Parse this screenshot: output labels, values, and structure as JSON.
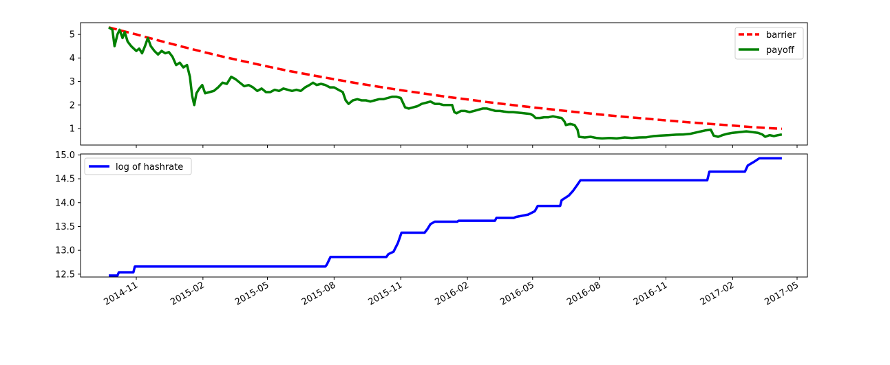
{
  "chart_data": [
    {
      "type": "line",
      "title": "",
      "xlabel": "",
      "ylabel": "",
      "x_tick_labels": [
        "2014-11",
        "2015-02",
        "2015-05",
        "2015-08",
        "2015-11",
        "2016-02",
        "2016-05",
        "2016-08",
        "2016-11",
        "2017-02",
        "2017-05"
      ],
      "x_ticks_shared": true,
      "ylim": [
        0.3,
        5.5
      ],
      "yticks": [
        1,
        2,
        3,
        4,
        5
      ],
      "legend_position": "top-right",
      "grid": false,
      "series": [
        {
          "name": "barrier",
          "color": "#ff0000",
          "style": "dashed",
          "points": [
            [
              "2014-09-24",
              5.3
            ],
            [
              "2014-11-01",
              5.0
            ],
            [
              "2014-12-01",
              4.75
            ],
            [
              "2015-01-01",
              4.5
            ],
            [
              "2015-02-01",
              4.26
            ],
            [
              "2015-03-01",
              4.05
            ],
            [
              "2015-04-01",
              3.84
            ],
            [
              "2015-05-01",
              3.64
            ],
            [
              "2015-06-01",
              3.44
            ],
            [
              "2015-07-01",
              3.27
            ],
            [
              "2015-08-01",
              3.1
            ],
            [
              "2015-09-01",
              2.93
            ],
            [
              "2015-10-01",
              2.78
            ],
            [
              "2015-11-01",
              2.63
            ],
            [
              "2015-12-01",
              2.5
            ],
            [
              "2016-01-01",
              2.36
            ],
            [
              "2016-02-01",
              2.24
            ],
            [
              "2016-03-01",
              2.12
            ],
            [
              "2016-04-01",
              2.01
            ],
            [
              "2016-05-01",
              1.9
            ],
            [
              "2016-06-01",
              1.8
            ],
            [
              "2016-07-01",
              1.7
            ],
            [
              "2016-08-01",
              1.6
            ],
            [
              "2016-09-01",
              1.51
            ],
            [
              "2016-10-01",
              1.43
            ],
            [
              "2016-11-01",
              1.35
            ],
            [
              "2016-12-01",
              1.27
            ],
            [
              "2017-01-01",
              1.2
            ],
            [
              "2017-02-01",
              1.13
            ],
            [
              "2017-03-01",
              1.06
            ],
            [
              "2017-04-10",
              0.99
            ]
          ]
        },
        {
          "name": "payoff",
          "color": "#008000",
          "style": "solid",
          "points": [
            [
              "2014-09-24",
              5.3
            ],
            [
              "2014-09-29",
              5.2
            ],
            [
              "2014-10-02",
              4.5
            ],
            [
              "2014-10-06",
              5.0
            ],
            [
              "2014-10-09",
              5.2
            ],
            [
              "2014-10-13",
              4.85
            ],
            [
              "2014-10-16",
              5.1
            ],
            [
              "2014-10-20",
              4.7
            ],
            [
              "2014-10-25",
              4.5
            ],
            [
              "2014-11-01",
              4.3
            ],
            [
              "2014-11-05",
              4.4
            ],
            [
              "2014-11-09",
              4.2
            ],
            [
              "2014-11-13",
              4.5
            ],
            [
              "2014-11-17",
              4.85
            ],
            [
              "2014-11-21",
              4.5
            ],
            [
              "2014-11-26",
              4.3
            ],
            [
              "2014-12-01",
              4.15
            ],
            [
              "2014-12-06",
              4.3
            ],
            [
              "2014-12-11",
              4.2
            ],
            [
              "2014-12-16",
              4.25
            ],
            [
              "2014-12-21",
              4.05
            ],
            [
              "2014-12-26",
              3.7
            ],
            [
              "2014-12-31",
              3.8
            ],
            [
              "2015-01-05",
              3.6
            ],
            [
              "2015-01-10",
              3.7
            ],
            [
              "2015-01-14",
              3.2
            ],
            [
              "2015-01-17",
              2.4
            ],
            [
              "2015-01-20",
              2.0
            ],
            [
              "2015-01-23",
              2.5
            ],
            [
              "2015-01-27",
              2.7
            ],
            [
              "2015-01-31",
              2.85
            ],
            [
              "2015-02-04",
              2.5
            ],
            [
              "2015-02-10",
              2.55
            ],
            [
              "2015-02-16",
              2.6
            ],
            [
              "2015-02-22",
              2.75
            ],
            [
              "2015-02-28",
              2.95
            ],
            [
              "2015-03-06",
              2.9
            ],
            [
              "2015-03-12",
              3.2
            ],
            [
              "2015-03-18",
              3.1
            ],
            [
              "2015-03-24",
              2.95
            ],
            [
              "2015-03-30",
              2.8
            ],
            [
              "2015-04-05",
              2.85
            ],
            [
              "2015-04-11",
              2.75
            ],
            [
              "2015-04-17",
              2.6
            ],
            [
              "2015-04-23",
              2.7
            ],
            [
              "2015-04-29",
              2.55
            ],
            [
              "2015-05-05",
              2.55
            ],
            [
              "2015-05-11",
              2.65
            ],
            [
              "2015-05-17",
              2.6
            ],
            [
              "2015-05-23",
              2.7
            ],
            [
              "2015-05-29",
              2.65
            ],
            [
              "2015-06-04",
              2.6
            ],
            [
              "2015-06-10",
              2.65
            ],
            [
              "2015-06-16",
              2.6
            ],
            [
              "2015-06-22",
              2.75
            ],
            [
              "2015-06-28",
              2.85
            ],
            [
              "2015-07-03",
              2.95
            ],
            [
              "2015-07-08",
              2.85
            ],
            [
              "2015-07-14",
              2.9
            ],
            [
              "2015-07-20",
              2.85
            ],
            [
              "2015-07-26",
              2.75
            ],
            [
              "2015-08-01",
              2.75
            ],
            [
              "2015-08-07",
              2.65
            ],
            [
              "2015-08-13",
              2.55
            ],
            [
              "2015-08-17",
              2.2
            ],
            [
              "2015-08-21",
              2.05
            ],
            [
              "2015-08-27",
              2.2
            ],
            [
              "2015-09-02",
              2.25
            ],
            [
              "2015-09-08",
              2.2
            ],
            [
              "2015-09-14",
              2.2
            ],
            [
              "2015-09-20",
              2.15
            ],
            [
              "2015-09-26",
              2.2
            ],
            [
              "2015-10-02",
              2.25
            ],
            [
              "2015-10-08",
              2.25
            ],
            [
              "2015-10-14",
              2.3
            ],
            [
              "2015-10-20",
              2.35
            ],
            [
              "2015-10-26",
              2.35
            ],
            [
              "2015-11-01",
              2.3
            ],
            [
              "2015-11-04",
              2.1
            ],
            [
              "2015-11-07",
              1.9
            ],
            [
              "2015-11-12",
              1.85
            ],
            [
              "2015-11-18",
              1.9
            ],
            [
              "2015-11-24",
              1.95
            ],
            [
              "2015-11-30",
              2.05
            ],
            [
              "2015-12-06",
              2.1
            ],
            [
              "2015-12-12",
              2.15
            ],
            [
              "2015-12-18",
              2.05
            ],
            [
              "2015-12-24",
              2.05
            ],
            [
              "2015-12-30",
              2.0
            ],
            [
              "2016-01-05",
              2.0
            ],
            [
              "2016-01-11",
              2.0
            ],
            [
              "2016-01-14",
              1.7
            ],
            [
              "2016-01-17",
              1.65
            ],
            [
              "2016-01-23",
              1.75
            ],
            [
              "2016-01-29",
              1.75
            ],
            [
              "2016-02-04",
              1.7
            ],
            [
              "2016-02-10",
              1.75
            ],
            [
              "2016-02-16",
              1.8
            ],
            [
              "2016-02-22",
              1.85
            ],
            [
              "2016-02-28",
              1.85
            ],
            [
              "2016-03-05",
              1.8
            ],
            [
              "2016-03-11",
              1.75
            ],
            [
              "2016-03-17",
              1.75
            ],
            [
              "2016-03-23",
              1.72
            ],
            [
              "2016-03-29",
              1.7
            ],
            [
              "2016-04-04",
              1.7
            ],
            [
              "2016-04-10",
              1.68
            ],
            [
              "2016-04-16",
              1.66
            ],
            [
              "2016-04-22",
              1.64
            ],
            [
              "2016-04-28",
              1.62
            ],
            [
              "2016-05-02",
              1.55
            ],
            [
              "2016-05-05",
              1.45
            ],
            [
              "2016-05-11",
              1.45
            ],
            [
              "2016-05-17",
              1.48
            ],
            [
              "2016-05-23",
              1.48
            ],
            [
              "2016-05-29",
              1.52
            ],
            [
              "2016-06-04",
              1.48
            ],
            [
              "2016-06-10",
              1.45
            ],
            [
              "2016-06-14",
              1.3
            ],
            [
              "2016-06-16",
              1.15
            ],
            [
              "2016-06-22",
              1.2
            ],
            [
              "2016-06-28",
              1.15
            ],
            [
              "2016-07-02",
              0.95
            ],
            [
              "2016-07-04",
              0.65
            ],
            [
              "2016-07-12",
              0.62
            ],
            [
              "2016-07-20",
              0.65
            ],
            [
              "2016-07-28",
              0.6
            ],
            [
              "2016-08-05",
              0.58
            ],
            [
              "2016-08-15",
              0.6
            ],
            [
              "2016-08-25",
              0.58
            ],
            [
              "2016-09-05",
              0.62
            ],
            [
              "2016-09-15",
              0.6
            ],
            [
              "2016-09-25",
              0.62
            ],
            [
              "2016-10-05",
              0.63
            ],
            [
              "2016-10-15",
              0.68
            ],
            [
              "2016-10-25",
              0.7
            ],
            [
              "2016-11-05",
              0.72
            ],
            [
              "2016-11-15",
              0.74
            ],
            [
              "2016-11-25",
              0.75
            ],
            [
              "2016-12-05",
              0.78
            ],
            [
              "2016-12-15",
              0.85
            ],
            [
              "2016-12-25",
              0.92
            ],
            [
              "2017-01-02",
              0.95
            ],
            [
              "2017-01-06",
              0.7
            ],
            [
              "2017-01-12",
              0.65
            ],
            [
              "2017-01-18",
              0.72
            ],
            [
              "2017-01-25",
              0.78
            ],
            [
              "2017-02-01",
              0.82
            ],
            [
              "2017-02-10",
              0.85
            ],
            [
              "2017-02-20",
              0.88
            ],
            [
              "2017-02-28",
              0.85
            ],
            [
              "2017-03-08",
              0.82
            ],
            [
              "2017-03-14",
              0.75
            ],
            [
              "2017-03-18",
              0.65
            ],
            [
              "2017-03-24",
              0.72
            ],
            [
              "2017-03-30",
              0.68
            ],
            [
              "2017-04-05",
              0.72
            ],
            [
              "2017-04-10",
              0.75
            ]
          ]
        }
      ]
    },
    {
      "type": "line",
      "title": "",
      "xlabel": "",
      "ylabel": "",
      "ylim": [
        12.44,
        15.02
      ],
      "yticks": [
        12.5,
        13.0,
        13.5,
        14.0,
        14.5,
        15.0
      ],
      "legend_position": "top-left",
      "grid": false,
      "series": [
        {
          "name": "log of hashrate",
          "color": "#0000ff",
          "style": "solid",
          "points": [
            [
              "2014-09-24",
              12.47
            ],
            [
              "2014-10-06",
              12.47
            ],
            [
              "2014-10-08",
              12.54
            ],
            [
              "2014-10-28",
              12.54
            ],
            [
              "2014-10-30",
              12.66
            ],
            [
              "2015-07-20",
              12.66
            ],
            [
              "2015-07-22",
              12.7
            ],
            [
              "2015-07-27",
              12.86
            ],
            [
              "2015-10-12",
              12.86
            ],
            [
              "2015-10-15",
              12.92
            ],
            [
              "2015-10-22",
              12.97
            ],
            [
              "2015-10-28",
              13.15
            ],
            [
              "2015-11-02",
              13.37
            ],
            [
              "2015-12-04",
              13.37
            ],
            [
              "2015-12-08",
              13.45
            ],
            [
              "2015-12-12",
              13.55
            ],
            [
              "2015-12-18",
              13.6
            ],
            [
              "2016-01-18",
              13.6
            ],
            [
              "2016-01-20",
              13.62
            ],
            [
              "2016-03-10",
              13.62
            ],
            [
              "2016-03-12",
              13.68
            ],
            [
              "2016-04-05",
              13.68
            ],
            [
              "2016-04-08",
              13.7
            ],
            [
              "2016-04-25",
              13.75
            ],
            [
              "2016-05-04",
              13.82
            ],
            [
              "2016-05-08",
              13.93
            ],
            [
              "2016-06-08",
              13.93
            ],
            [
              "2016-06-10",
              14.05
            ],
            [
              "2016-06-20",
              14.15
            ],
            [
              "2016-06-26",
              14.25
            ],
            [
              "2016-07-02",
              14.38
            ],
            [
              "2016-07-06",
              14.47
            ],
            [
              "2016-12-28",
              14.47
            ],
            [
              "2016-12-31",
              14.65
            ],
            [
              "2017-02-18",
              14.65
            ],
            [
              "2017-02-22",
              14.78
            ],
            [
              "2017-03-02",
              14.85
            ],
            [
              "2017-03-10",
              14.93
            ],
            [
              "2017-04-10",
              14.93
            ]
          ]
        }
      ]
    }
  ]
}
